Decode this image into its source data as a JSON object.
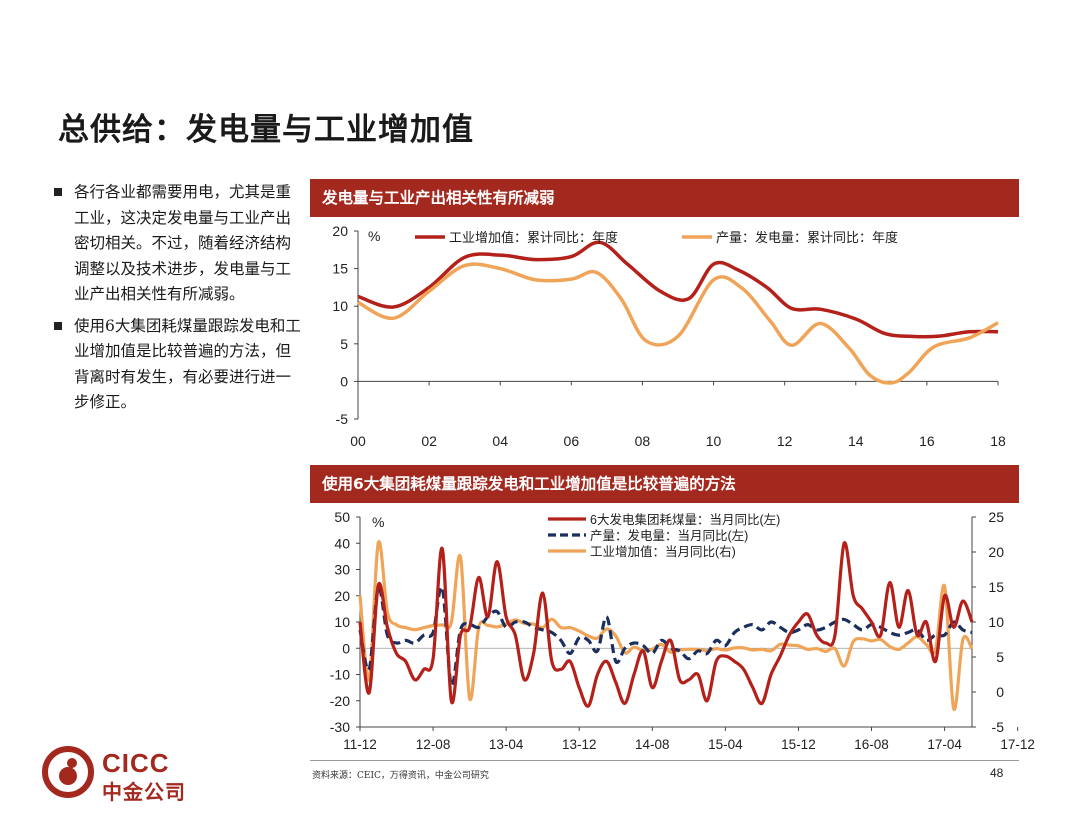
{
  "page": {
    "title": "总供给：发电量与工业增加值",
    "page_number": "48",
    "source": "资料来源：CEIC，万得资讯，中金公司研究",
    "logo_en": "CICC",
    "logo_cn": "中金公司"
  },
  "bullets": [
    "各行各业都需要用电，尤其是重工业，这决定发电量与工业产出密切相关。不过，随着经济结构调整以及技术进步，发电量与工业产出相关性有所减弱。",
    "使用6大集团耗煤量跟踪发电和工业增加值是比较普遍的方法，但背离时有发生，有必要进行进一步修正。"
  ],
  "colors": {
    "red": "#b4201a",
    "orange": "#f0a458",
    "navy": "#1b2f5e",
    "header": "#a3281e"
  },
  "chart_data": [
    {
      "type": "line",
      "title": "发电量与工业产出相关性有所减弱",
      "unit": "%",
      "x_ticks": [
        "00",
        "02",
        "04",
        "06",
        "08",
        "10",
        "12",
        "14",
        "16",
        "18"
      ],
      "xlim": [
        2000,
        2018
      ],
      "ylim": [
        -5,
        20
      ],
      "y_ticks": [
        "-5",
        "0",
        "5",
        "10",
        "15",
        "20"
      ],
      "series": [
        {
          "name": "工业增加值：累计同比：年度",
          "color": "#b4201a",
          "x": [
            2000,
            2001,
            2002,
            2003,
            2004,
            2005,
            2006,
            2006.8,
            2007.6,
            2008.5,
            2009.3,
            2010,
            2010.7,
            2011.5,
            2012.2,
            2013,
            2014,
            2014.8,
            2015.5,
            2016.3,
            2017.2,
            2018
          ],
          "values": [
            11.3,
            9.9,
            12.5,
            16.5,
            16.8,
            16.2,
            16.6,
            18.5,
            15.5,
            12.0,
            11.0,
            15.6,
            14.8,
            12.5,
            9.7,
            9.6,
            8.3,
            6.4,
            6.0,
            6.0,
            6.6,
            6.6
          ]
        },
        {
          "name": "产量：发电量：累计同比：年度",
          "color": "#f0a458",
          "x": [
            2000,
            2001,
            2002,
            2003,
            2004,
            2005,
            2006,
            2006.7,
            2007.4,
            2008.1,
            2009,
            2010,
            2010.8,
            2011.6,
            2012.2,
            2013,
            2013.8,
            2014.4,
            2015,
            2015.5,
            2016.2,
            2017.2,
            2018
          ],
          "values": [
            10.5,
            8.4,
            12.0,
            15.4,
            15.0,
            13.5,
            13.6,
            14.5,
            11.0,
            5.4,
            6.0,
            13.5,
            12.4,
            8.0,
            4.8,
            7.7,
            4.5,
            0.8,
            -0.2,
            1.2,
            4.6,
            5.8,
            7.8
          ]
        }
      ]
    },
    {
      "type": "line",
      "title": "使用6大集团耗煤量跟踪发电和工业增加值是比较普遍的方法",
      "unit": "%",
      "x_ticks": [
        "11-12",
        "12-08",
        "13-04",
        "13-12",
        "14-08",
        "15-04",
        "15-12",
        "16-08",
        "17-04",
        "17-12"
      ],
      "left_ylim": [
        -30,
        50
      ],
      "left_y_ticks": [
        "-30",
        "-20",
        "-10",
        "0",
        "10",
        "20",
        "30",
        "40",
        "50"
      ],
      "right_ylim": [
        -5,
        25
      ],
      "right_y_ticks": [
        "-5",
        "0",
        "5",
        "10",
        "15",
        "20",
        "25"
      ],
      "series": [
        {
          "name": "6大发电集团耗煤量：当月同比(左)",
          "axis": "left",
          "color": "#b4201a",
          "values": [
            10,
            -17,
            24,
            8,
            -2,
            -5,
            -12,
            -8,
            -4,
            38,
            -20,
            5,
            8,
            27,
            12,
            33,
            12,
            5,
            -12,
            -2,
            21,
            -5,
            -8,
            -5,
            -15,
            -22,
            -10,
            -5,
            -13,
            -21,
            -10,
            -1,
            -15,
            -5,
            3,
            -12,
            -12,
            -10,
            -20,
            -5,
            -3,
            -5,
            -8,
            -15,
            -21,
            -10,
            -3,
            5,
            10,
            13,
            5,
            2,
            5,
            40,
            20,
            15,
            10,
            5,
            25,
            8,
            22,
            5,
            10,
            -5,
            20,
            8,
            18,
            10
          ]
        },
        {
          "name": "产量：发电量：当月同比(左)",
          "axis": "left",
          "color": "#1b2f5e",
          "dashed": true,
          "values": [
            7,
            -8,
            23,
            5,
            2,
            3,
            2,
            5,
            6,
            23,
            -14,
            7,
            9,
            8,
            12,
            14,
            8,
            10,
            10,
            8,
            7,
            6,
            3,
            -2,
            4,
            3,
            -1,
            12,
            -5,
            0,
            2,
            1,
            -2,
            3,
            0,
            -1,
            -4,
            -1,
            -2,
            3,
            1,
            6,
            8,
            9,
            7,
            10,
            8,
            6,
            7,
            9,
            7,
            8,
            10,
            11,
            9,
            7,
            9,
            8,
            6,
            5,
            6,
            7,
            3,
            5,
            5,
            10,
            7,
            6
          ]
        },
        {
          "name": "工业增加值：当月同比(右)",
          "axis": "right",
          "color": "#f0a458",
          "values": [
            13.8,
            1.8,
            21.3,
            11.4,
            9.6,
            9.2,
            8.9,
            9.2,
            9.5,
            9.6,
            9.9,
            19.3,
            -0.9,
            9.2,
            9.5,
            9.3,
            9.7,
            10.3,
            9.8,
            9.7,
            9.2,
            10.4,
            9.2,
            9.2,
            8.7,
            8.0,
            7.7,
            9.0,
            8.0,
            5.6,
            6.4,
            5.9,
            6.1,
            6.8,
            5.7,
            6.0,
            6.1,
            6.1,
            5.9,
            6.2,
            6.0,
            6.3,
            6.3,
            6.0,
            6.1,
            5.9,
            6.8,
            6.7,
            6.6,
            6.1,
            6.2,
            5.8,
            6.2,
            3.7,
            7.2,
            7.6,
            7.3,
            7.5,
            6.5,
            6.1,
            7.0,
            7.9,
            6.8,
            6.0,
            15.1,
            -2.4,
            7.5,
            6.2
          ]
        }
      ]
    }
  ]
}
